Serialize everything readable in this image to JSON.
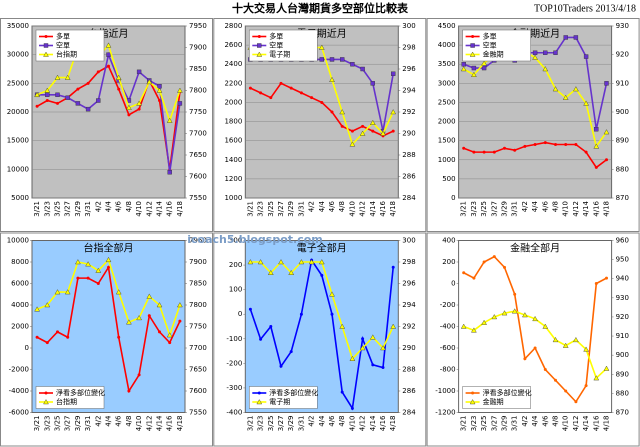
{
  "page": {
    "title": "十大交易人台灣期貨多空部位比較表",
    "source": "TOP10Traders 2013/4/18",
    "watermark": "icoach5.blogspot.com"
  },
  "chart_data": [
    {
      "type": "line",
      "title": "台指近月",
      "title_color": "#000000",
      "plot_color": "#c0c0c0",
      "grid": true,
      "legend": "upper left",
      "categories": [
        "3/21",
        "3/23",
        "3/25",
        "3/27",
        "3/29",
        "3/31",
        "4/2",
        "4/4",
        "4/6",
        "4/8",
        "4/10",
        "4/12",
        "4/14",
        "4/16",
        "4/18"
      ],
      "ylim": [
        5000,
        35000
      ],
      "yticks": [
        5000,
        10000,
        15000,
        20000,
        25000,
        30000,
        35000
      ],
      "y2lim": [
        7550,
        7950
      ],
      "y2ticks": [
        7550,
        7600,
        7650,
        7700,
        7750,
        7800,
        7850,
        7900,
        7950
      ],
      "series": [
        {
          "name": "多單",
          "color": "#ff0000",
          "marker": "circle",
          "values": [
            21000,
            22000,
            21500,
            22500,
            24000,
            25000,
            27000,
            28000,
            24000,
            19500,
            20500,
            25500,
            22000,
            10000,
            23500
          ]
        },
        {
          "name": "空單",
          "color": "#6633cc",
          "marker": "square",
          "values": [
            23000,
            23000,
            23000,
            22500,
            21500,
            20500,
            22000,
            30000,
            25500,
            22000,
            27000,
            25500,
            24500,
            9500,
            21500
          ]
        },
        {
          "name": "台指期",
          "color": "#ffff00",
          "marker": "triangle",
          "axis": "y2",
          "values": [
            7790,
            7800,
            7830,
            7830,
            7900,
            7895,
            7880,
            7905,
            7830,
            7760,
            7770,
            7820,
            7800,
            7730,
            7800
          ]
        }
      ]
    },
    {
      "type": "line",
      "title": "電子期近月",
      "title_color": "#000000",
      "plot_color": "#c0c0c0",
      "grid": true,
      "legend": "upper left",
      "categories": [
        "3/21",
        "3/23",
        "3/25",
        "3/27",
        "3/29",
        "3/31",
        "4/2",
        "4/4",
        "4/6",
        "4/8",
        "4/10",
        "4/12",
        "4/14",
        "4/16",
        "4/18"
      ],
      "ylim": [
        1000,
        2800
      ],
      "yticks": [
        1000,
        1200,
        1400,
        1600,
        1800,
        2000,
        2200,
        2400,
        2600,
        2800
      ],
      "y2lim": [
        284,
        300
      ],
      "y2ticks": [
        284,
        286,
        288,
        290,
        292,
        294,
        296,
        298,
        300
      ],
      "series": [
        {
          "name": "多單",
          "color": "#ff0000",
          "marker": "circle",
          "values": [
            2150,
            2100,
            2050,
            2200,
            2150,
            2100,
            2050,
            2000,
            1900,
            1750,
            1700,
            1750,
            1700,
            1650,
            1700
          ]
        },
        {
          "name": "空單",
          "color": "#6633cc",
          "marker": "square",
          "values": [
            2450,
            2450,
            2450,
            2450,
            2450,
            2450,
            2450,
            2450,
            2450,
            2450,
            2400,
            2350,
            2200,
            1700,
            2300
          ]
        },
        {
          "name": "電子期",
          "color": "#ffff00",
          "marker": "triangle",
          "axis": "y2",
          "values": [
            298,
            298,
            297,
            298,
            297,
            298,
            298,
            298,
            295,
            292,
            289,
            290,
            291,
            290,
            292
          ]
        }
      ]
    },
    {
      "type": "line",
      "title": "金融期近月",
      "title_color": "#000000",
      "plot_color": "#c0c0c0",
      "grid": true,
      "legend": "upper left",
      "categories": [
        "3/21",
        "3/23",
        "3/25",
        "3/27",
        "3/29",
        "3/31",
        "4/2",
        "4/4",
        "4/6",
        "4/8",
        "4/10",
        "4/12",
        "4/14",
        "4/16",
        "4/18"
      ],
      "ylim": [
        0,
        4500
      ],
      "yticks": [
        0,
        500,
        1000,
        1500,
        2000,
        2500,
        3000,
        3500,
        4000,
        4500
      ],
      "y2lim": [
        870,
        930
      ],
      "y2ticks": [
        870,
        880,
        890,
        900,
        910,
        920,
        930
      ],
      "series": [
        {
          "name": "多單",
          "color": "#ff0000",
          "marker": "circle",
          "values": [
            1300,
            1200,
            1200,
            1200,
            1300,
            1250,
            1350,
            1400,
            1450,
            1400,
            1400,
            1400,
            1200,
            800,
            1000
          ]
        },
        {
          "name": "空單",
          "color": "#6633cc",
          "marker": "square",
          "values": [
            3500,
            3400,
            3400,
            3600,
            3700,
            3600,
            3800,
            3800,
            3800,
            3800,
            4200,
            4200,
            3700,
            1800,
            3000
          ]
        },
        {
          "name": "金融期",
          "color": "#ffff00",
          "marker": "triangle",
          "axis": "y2",
          "values": [
            915,
            913,
            917,
            920,
            922,
            923,
            921,
            919,
            915,
            908,
            905,
            908,
            903,
            888,
            893
          ]
        }
      ]
    },
    {
      "type": "line",
      "title": "台指全部月",
      "title_color": "#ff0000",
      "plot_color": "#99ccff",
      "grid": false,
      "legend": "lower left",
      "categories": [
        "3/21",
        "3/23",
        "3/25",
        "3/27",
        "3/29",
        "3/31",
        "4/2",
        "4/4",
        "4/6",
        "4/8",
        "4/10",
        "4/12",
        "4/14",
        "4/16",
        "4/18"
      ],
      "ylim": [
        -6000,
        10000
      ],
      "yticks": [
        -6000,
        -4000,
        -2000,
        0,
        2000,
        4000,
        6000,
        8000,
        10000
      ],
      "y2lim": [
        7550,
        7950
      ],
      "y2ticks": [
        7550,
        7600,
        7650,
        7700,
        7750,
        7800,
        7850,
        7900,
        7950
      ],
      "series": [
        {
          "name": "淨看多部位變化",
          "color": "#ff0000",
          "marker": "circle",
          "values": [
            1000,
            500,
            1500,
            1000,
            6500,
            6500,
            6000,
            7500,
            1000,
            -4000,
            -2500,
            3000,
            1500,
            500,
            2500
          ]
        },
        {
          "name": "台指期",
          "color": "#ffff00",
          "marker": "triangle",
          "axis": "y2",
          "values": [
            7790,
            7800,
            7830,
            7830,
            7900,
            7895,
            7880,
            7905,
            7830,
            7760,
            7770,
            7820,
            7800,
            7730,
            7800
          ]
        }
      ]
    },
    {
      "type": "line",
      "title": "電子全部月",
      "title_color": "#0000ff",
      "plot_color": "#99ccff",
      "grid": false,
      "legend": "lower left",
      "categories": [
        "3/21",
        "3/23",
        "3/25",
        "3/27",
        "3/29",
        "3/31",
        "4/2",
        "4/4",
        "4/6",
        "4/8",
        "4/10",
        "4/12",
        "4/14",
        "4/16",
        "4/18"
      ],
      "ylim": [
        -400,
        300
      ],
      "yticks": [
        -400,
        -300,
        -200,
        -100,
        0,
        100,
        200,
        300
      ],
      "y2lim": [
        284,
        300
      ],
      "y2ticks": [
        284,
        286,
        288,
        290,
        292,
        294,
        296,
        298,
        300
      ],
      "series": [
        {
          "name": "淨看多部位變化",
          "color": "#0000ff",
          "marker": "circle",
          "values": [
            20,
            -102,
            -50,
            -212,
            -152,
            0,
            220,
            158,
            0,
            -317,
            -383,
            -100,
            -206,
            -217,
            191
          ]
        },
        {
          "name": "電子期",
          "color": "#ffff00",
          "marker": "triangle",
          "axis": "y2",
          "values": [
            298,
            298,
            297,
            298,
            297,
            298,
            298,
            298,
            295,
            292,
            289,
            290,
            291,
            290,
            292
          ]
        }
      ]
    },
    {
      "type": "line",
      "title": "金融全部月",
      "title_color": "#ff0000",
      "plot_color": "#ffffff",
      "grid": false,
      "legend": "lower left",
      "categories": [
        "3/21",
        "3/23",
        "3/25",
        "3/27",
        "3/29",
        "3/31",
        "4/2",
        "4/4",
        "4/6",
        "4/8",
        "4/10",
        "4/12",
        "4/14",
        "4/16",
        "4/18"
      ],
      "ylim": [
        -1200,
        400
      ],
      "yticks": [
        -1200,
        -1000,
        -800,
        -600,
        -400,
        -200,
        0,
        200,
        400
      ],
      "y2lim": [
        870,
        960
      ],
      "y2ticks": [
        870,
        880,
        890,
        900,
        910,
        920,
        930,
        940,
        950,
        960
      ],
      "series": [
        {
          "name": "淨看多部位變化",
          "color": "#ff6600",
          "marker": "circle",
          "values": [
            100,
            50,
            200,
            250,
            150,
            -100,
            -700,
            -600,
            -800,
            -900,
            -1000,
            -1100,
            -950,
            0,
            50
          ]
        },
        {
          "name": "金融期",
          "color": "#ffff00",
          "marker": "triangle",
          "axis": "y2",
          "values": [
            915,
            913,
            917,
            920,
            922,
            923,
            921,
            919,
            915,
            908,
            905,
            908,
            903,
            888,
            893
          ]
        }
      ]
    }
  ]
}
